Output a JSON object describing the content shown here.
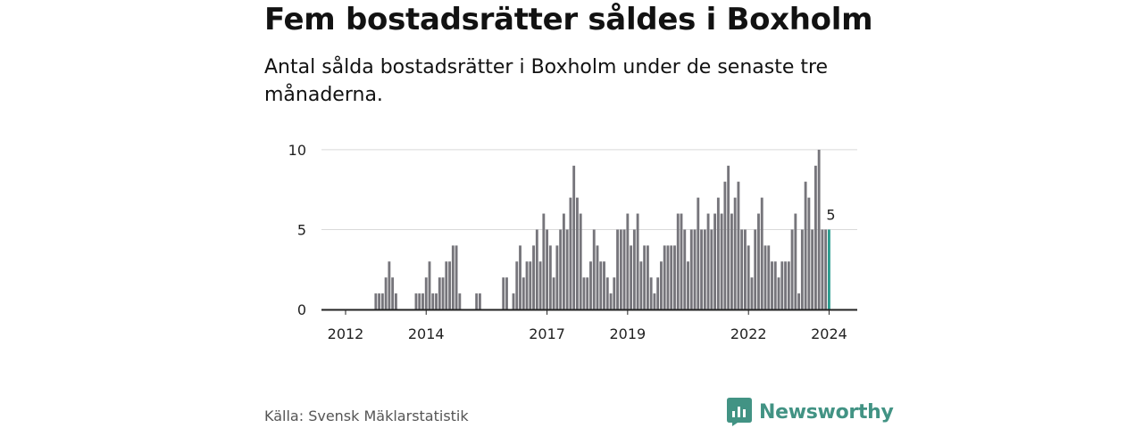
{
  "title": "Fem bostadsrätter såldes i Boxholm",
  "subtitle": "Antal sålda bostadsrätter i Boxholm under de senaste tre månaderna.",
  "source": "Källa: Svensk Mäklarstatistik",
  "brand": {
    "name": "Newsworthy",
    "color": "#429384",
    "icon": "newsworthy-logo-icon"
  },
  "colors": {
    "bar": "#76757b",
    "highlight": "#2a9d8f",
    "grid": "#d9d9d9",
    "axis": "#222222"
  },
  "chart_data": {
    "type": "bar",
    "title": "Fem bostadsrätter såldes i Boxholm",
    "xlabel": "",
    "ylabel": "",
    "ylim": [
      0,
      11
    ],
    "yticks": [
      0,
      5,
      10
    ],
    "x_tick_labels": [
      "2012",
      "2014",
      "2017",
      "2019",
      "2022",
      "2024"
    ],
    "x_tick_indices": [
      0,
      24,
      60,
      84,
      120,
      144
    ],
    "start": "2012-01",
    "end": "2024-01",
    "grid": true,
    "legend": "none",
    "highlight_index": 144,
    "last_value_label": "5",
    "values": [
      0,
      0,
      0,
      0,
      0,
      0,
      0,
      0,
      0,
      1,
      1,
      1,
      2,
      3,
      2,
      1,
      0,
      0,
      0,
      0,
      0,
      1,
      1,
      1,
      2,
      3,
      1,
      1,
      2,
      2,
      3,
      3,
      4,
      4,
      1,
      0,
      0,
      0,
      0,
      1,
      1,
      0,
      0,
      0,
      0,
      0,
      0,
      2,
      2,
      0,
      1,
      3,
      4,
      2,
      3,
      3,
      4,
      5,
      3,
      6,
      5,
      4,
      2,
      4,
      5,
      6,
      5,
      7,
      9,
      7,
      6,
      2,
      2,
      3,
      5,
      4,
      3,
      3,
      2,
      1,
      2,
      5,
      5,
      5,
      6,
      4,
      5,
      6,
      3,
      4,
      4,
      2,
      1,
      2,
      3,
      4,
      4,
      4,
      4,
      6,
      6,
      5,
      3,
      5,
      5,
      7,
      5,
      5,
      6,
      5,
      6,
      7,
      6,
      8,
      9,
      6,
      7,
      8,
      5,
      5,
      4,
      2,
      5,
      6,
      7,
      4,
      4,
      3,
      3,
      2,
      3,
      3,
      3,
      5,
      6,
      1,
      5,
      8,
      7,
      5,
      9,
      10,
      5,
      5,
      5
    ]
  }
}
